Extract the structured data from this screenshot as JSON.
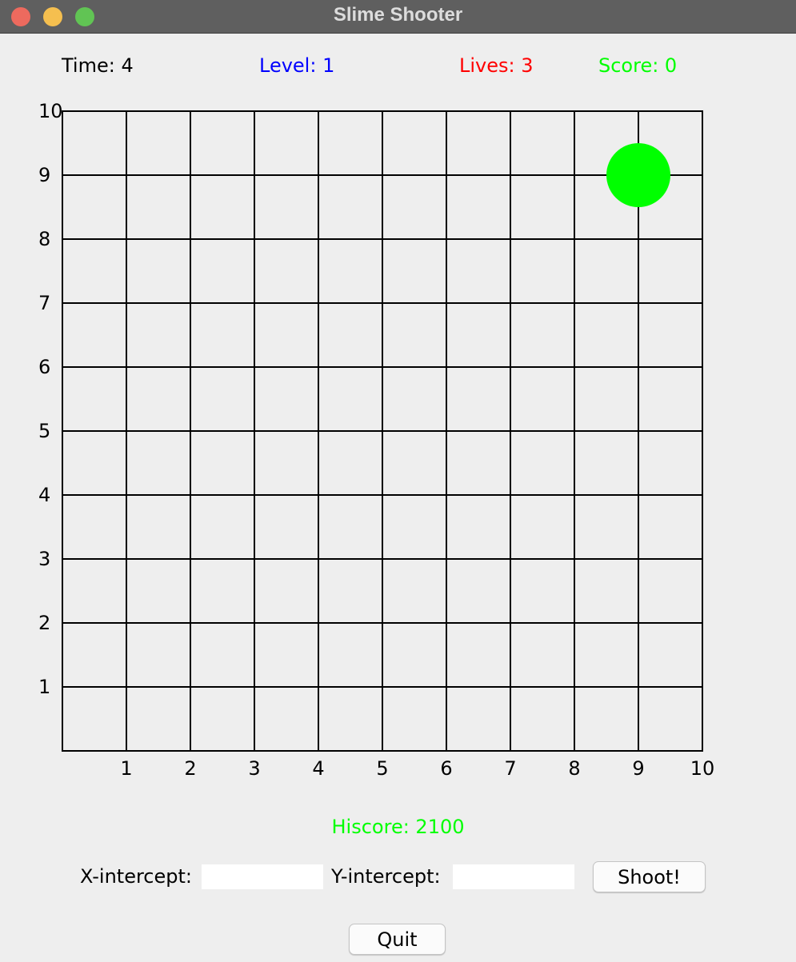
{
  "window": {
    "title": "Slime Shooter"
  },
  "hud": {
    "time": "Time: 4",
    "level": "Level: 1",
    "lives": "Lives: 3",
    "score": "Score: 0"
  },
  "colors": {
    "time": "#000000",
    "level": "#0000ff",
    "lives": "#ff0000",
    "score": "#00ff00",
    "hiscore": "#00ff00",
    "slime": "#00ff00"
  },
  "board": {
    "x_min": 0,
    "x_max": 10,
    "y_min": 0,
    "y_max": 10,
    "x_ticks": [
      "1",
      "2",
      "3",
      "4",
      "5",
      "6",
      "7",
      "8",
      "9",
      "10"
    ],
    "y_ticks": [
      "1",
      "2",
      "3",
      "4",
      "5",
      "6",
      "7",
      "8",
      "9",
      "10"
    ],
    "grid": true,
    "slimes": [
      {
        "x": 9,
        "y": 9,
        "radius": 0.5
      }
    ]
  },
  "hiscore": "Hiscore: 2100",
  "controls": {
    "x_label": "X-intercept:",
    "x_value": "",
    "y_label": "Y-intercept:",
    "y_value": "",
    "shoot_label": "Shoot!",
    "quit_label": "Quit"
  }
}
